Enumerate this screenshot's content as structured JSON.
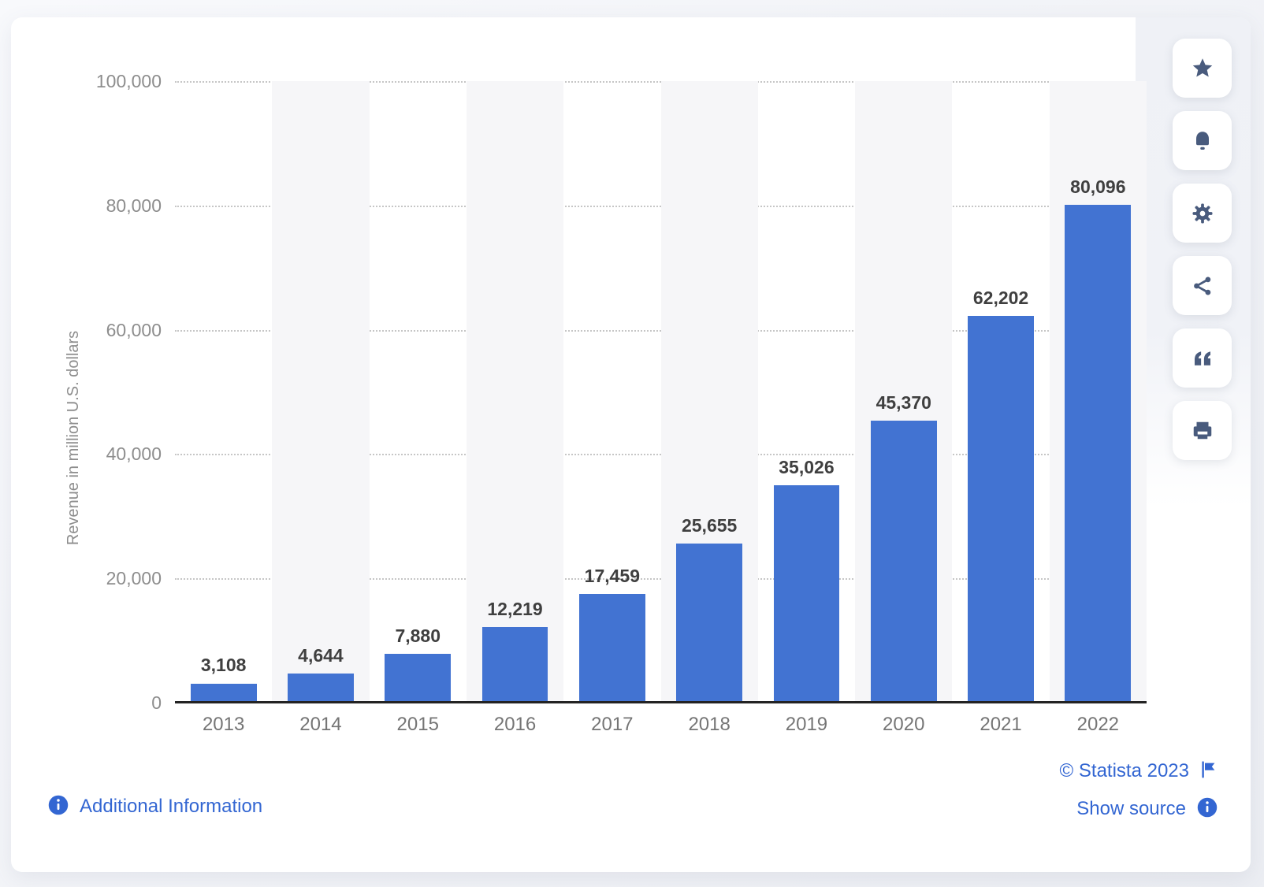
{
  "colors": {
    "bar_blue": "#4273d2",
    "link_blue": "#3366d2",
    "icon_slate": "#495b7d",
    "stripe": "#f6f6f8",
    "grid_dot": "#c6c6c6",
    "axis_black": "#232323",
    "label_dark": "#3f3f3f",
    "label_gray": "#757575",
    "tick_gray": "#8d8d8d"
  },
  "chart_data": {
    "type": "bar",
    "categories": [
      "2013",
      "2014",
      "2015",
      "2016",
      "2017",
      "2018",
      "2019",
      "2020",
      "2021",
      "2022"
    ],
    "values": [
      3108,
      4644,
      7880,
      12219,
      17459,
      25655,
      35026,
      45370,
      62202,
      80096
    ],
    "value_labels": [
      "3,108",
      "4,644",
      "7,880",
      "12,219",
      "17,459",
      "25,655",
      "35,026",
      "45,370",
      "62,202",
      "80,096"
    ],
    "xlabel": "",
    "ylabel": "Revenue in million U.S. dollars",
    "ylim": [
      0,
      100000
    ],
    "y_ticks": [
      100000,
      80000,
      60000,
      40000,
      20000,
      0
    ],
    "y_tick_labels": [
      "100,000",
      "80,000",
      "60,000",
      "40,000",
      "20,000",
      "0"
    ],
    "grid": "horizontal-dotted",
    "legend": "none",
    "alternating_column_stripes": true
  },
  "sidebar": {
    "buttons": [
      {
        "name": "favorite",
        "icon": "star-icon"
      },
      {
        "name": "notifications",
        "icon": "bell-icon"
      },
      {
        "name": "settings",
        "icon": "gear-icon"
      },
      {
        "name": "share",
        "icon": "share-icon"
      },
      {
        "name": "cite",
        "icon": "quote-icon"
      },
      {
        "name": "print",
        "icon": "print-icon"
      }
    ]
  },
  "footer": {
    "additional_information": "Additional Information",
    "copyright": "© Statista 2023",
    "show_source": "Show source"
  }
}
